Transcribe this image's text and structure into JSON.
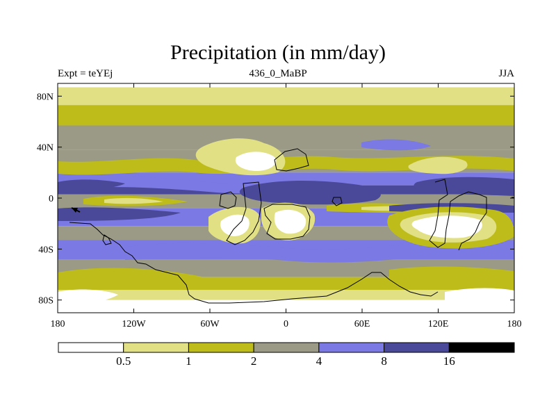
{
  "chart_data": {
    "type": "heatmap",
    "title": "Precipitation (in mm/day)",
    "left_label": "Expt = teYEj",
    "center_label": "436_0_MaBP",
    "right_label": "JJA",
    "y_ticks": [
      "80N",
      "40N",
      "0",
      "40S",
      "80S"
    ],
    "y_tick_values": [
      80,
      40,
      0,
      -40,
      -80
    ],
    "x_ticks": [
      "180",
      "120W",
      "60W",
      "0",
      "60E",
      "120E",
      "180"
    ],
    "x_tick_values": [
      -180,
      -120,
      -60,
      0,
      60,
      120,
      180
    ],
    "xlim": [
      -180,
      180
    ],
    "ylim": [
      -90,
      90
    ],
    "colorbar": {
      "colors": [
        "#ffffff",
        "#e1e084",
        "#bdbc1b",
        "#9a9a86",
        "#7b79e4",
        "#4a4898",
        "#000000"
      ],
      "labels": [
        "0.5",
        "1",
        "2",
        "4",
        "8",
        "16"
      ],
      "levels": [
        0.5,
        1,
        2,
        4,
        8,
        16
      ]
    },
    "zonal_bands": [
      {
        "lat": [
          90,
          87
        ],
        "value": 0.3
      },
      {
        "lat": [
          87,
          73
        ],
        "value": 0.8
      },
      {
        "lat": [
          73,
          57
        ],
        "value": 1.5
      },
      {
        "lat": [
          57,
          38
        ],
        "value": 3
      },
      {
        "lat": [
          38,
          20
        ],
        "value": 3
      },
      {
        "lat": [
          20,
          10
        ],
        "value": 6
      },
      {
        "lat": [
          10,
          3
        ],
        "value": 10
      },
      {
        "lat": [
          3,
          -8
        ],
        "value": 3
      },
      {
        "lat": [
          -8,
          -22
        ],
        "value": 6
      },
      {
        "lat": [
          -22,
          -33
        ],
        "value": 3
      },
      {
        "lat": [
          -33,
          -48
        ],
        "value": 6
      },
      {
        "lat": [
          -48,
          -62
        ],
        "value": 3
      },
      {
        "lat": [
          -62,
          -72
        ],
        "value": 1.5
      },
      {
        "lat": [
          -72,
          -80
        ],
        "value": 0.8
      },
      {
        "lat": [
          -80,
          -90
        ],
        "value": 0.3
      }
    ]
  }
}
